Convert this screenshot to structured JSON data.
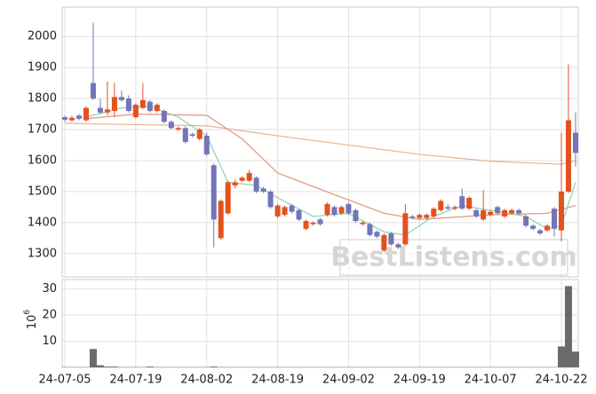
{
  "chart_data": [
    {
      "type": "candlestick",
      "categories": [
        "24-07-05",
        null,
        null,
        null,
        null,
        null,
        null,
        null,
        null,
        null,
        "24-07-19",
        null,
        null,
        null,
        null,
        null,
        null,
        null,
        null,
        null,
        "24-08-02",
        null,
        null,
        null,
        null,
        null,
        null,
        null,
        null,
        null,
        "24-08-19",
        null,
        null,
        null,
        null,
        null,
        null,
        null,
        null,
        null,
        "24-09-02",
        null,
        null,
        null,
        null,
        null,
        null,
        null,
        null,
        null,
        "24-09-19",
        null,
        null,
        null,
        null,
        null,
        null,
        null,
        null,
        null,
        "24-10-07",
        null,
        null,
        null,
        null,
        null,
        null,
        null,
        null,
        null,
        "24-10-22",
        null,
        null
      ],
      "open": [
        1740,
        1730,
        1745,
        1730,
        1850,
        1770,
        1755,
        1760,
        1805,
        1800,
        1740,
        1770,
        1790,
        1760,
        1760,
        1725,
        1700,
        1705,
        1685,
        1670,
        1680,
        1585,
        1350,
        1430,
        1520,
        1535,
        1535,
        1545,
        1510,
        1500,
        1420,
        1425,
        1455,
        1440,
        1380,
        1395,
        1410,
        1425,
        1450,
        1430,
        1460,
        1440,
        1395,
        1395,
        1370,
        1310,
        1365,
        1330,
        1330,
        1420,
        1415,
        1415,
        1420,
        1440,
        1450,
        1445,
        1485,
        1445,
        1440,
        1410,
        1425,
        1450,
        1420,
        1430,
        1440,
        1420,
        1390,
        1375,
        1375,
        1445,
        1375,
        1500,
        1690
      ],
      "high": [
        1745,
        1745,
        1750,
        1775,
        2045,
        1800,
        1855,
        1850,
        1825,
        1810,
        1785,
        1850,
        1795,
        1785,
        1765,
        1730,
        1710,
        1710,
        1690,
        1705,
        1690,
        1590,
        1475,
        1535,
        1540,
        1550,
        1570,
        1550,
        1515,
        1505,
        1460,
        1455,
        1460,
        1445,
        1410,
        1405,
        1415,
        1465,
        1455,
        1455,
        1465,
        1445,
        1405,
        1400,
        1375,
        1365,
        1370,
        1335,
        1460,
        1425,
        1430,
        1430,
        1450,
        1475,
        1460,
        1455,
        1510,
        1485,
        1445,
        1505,
        1440,
        1455,
        1445,
        1445,
        1445,
        1425,
        1395,
        1380,
        1395,
        1450,
        1690,
        1910,
        1755
      ],
      "low": [
        1725,
        1725,
        1730,
        1725,
        1795,
        1750,
        1745,
        1740,
        1790,
        1755,
        1735,
        1765,
        1755,
        1755,
        1720,
        1700,
        1695,
        1655,
        1675,
        1665,
        1615,
        1320,
        1345,
        1425,
        1510,
        1530,
        1530,
        1495,
        1495,
        1445,
        1415,
        1420,
        1430,
        1405,
        1375,
        1390,
        1390,
        1420,
        1420,
        1425,
        1425,
        1400,
        1390,
        1355,
        1350,
        1305,
        1325,
        1315,
        1325,
        1410,
        1410,
        1410,
        1415,
        1435,
        1440,
        1440,
        1440,
        1440,
        1415,
        1405,
        1420,
        1425,
        1415,
        1425,
        1425,
        1385,
        1375,
        1360,
        1370,
        1355,
        1340,
        1495,
        1580
      ],
      "close": [
        1732,
        1738,
        1735,
        1770,
        1800,
        1755,
        1765,
        1805,
        1795,
        1760,
        1780,
        1795,
        1760,
        1780,
        1725,
        1705,
        1705,
        1660,
        1680,
        1700,
        1620,
        1410,
        1470,
        1530,
        1530,
        1545,
        1560,
        1500,
        1500,
        1450,
        1455,
        1450,
        1435,
        1410,
        1405,
        1400,
        1395,
        1460,
        1425,
        1450,
        1430,
        1405,
        1400,
        1360,
        1355,
        1360,
        1330,
        1320,
        1430,
        1415,
        1425,
        1425,
        1445,
        1470,
        1445,
        1450,
        1445,
        1480,
        1420,
        1440,
        1435,
        1430,
        1440,
        1440,
        1430,
        1390,
        1380,
        1365,
        1390,
        1380,
        1500,
        1730,
        1625
      ],
      "up_color": "#e4511e",
      "down_color": "#7275b6",
      "overlays": [
        {
          "color": "#e8b89a",
          "x": [
            0,
            20,
            30,
            40,
            50,
            60,
            70,
            72
          ],
          "values": [
            1720,
            1712,
            1680,
            1650,
            1620,
            1598,
            1588,
            1600
          ]
        },
        {
          "color": "#e59a80",
          "x": [
            3,
            10,
            20,
            25,
            30,
            38,
            45,
            50,
            60,
            68,
            72
          ],
          "values": [
            1735,
            1750,
            1746,
            1670,
            1560,
            1490,
            1430,
            1410,
            1425,
            1430,
            1455
          ]
        },
        {
          "color": "#8fd6b4",
          "x": [
            3,
            8,
            12,
            16,
            20,
            23,
            27,
            30,
            35,
            40,
            45,
            48,
            52,
            56,
            60,
            65,
            68,
            70,
            72
          ],
          "values": [
            1740,
            1770,
            1775,
            1740,
            1680,
            1530,
            1520,
            1480,
            1420,
            1430,
            1370,
            1360,
            1420,
            1455,
            1440,
            1420,
            1380,
            1390,
            1530
          ]
        }
      ],
      "ylim": [
        1225,
        2095
      ],
      "yticks": [
        1300,
        1400,
        1500,
        1600,
        1700,
        1800,
        1900,
        2000
      ],
      "grid": true,
      "watermark": "BestListens.com"
    },
    {
      "type": "bar",
      "color": "#6b6b6b",
      "values": [
        0.1,
        0.1,
        0.1,
        0.1,
        7,
        0.8,
        0.3,
        0.3,
        0.1,
        0.1,
        0.1,
        0.1,
        0.3,
        0.1,
        0.1,
        0.1,
        0.1,
        0.1,
        0.1,
        0.1,
        0.1,
        0.3,
        0.1,
        0.1,
        0.1,
        0.1,
        0.1,
        0.1,
        0.1,
        0.1,
        0.1,
        0.1,
        0.1,
        0.1,
        0.1,
        0.1,
        0.1,
        0.1,
        0.1,
        0.1,
        0.1,
        0.1,
        0.1,
        0.1,
        0.1,
        0.1,
        0.1,
        0.1,
        0.1,
        0.1,
        0.1,
        0.1,
        0.1,
        0.1,
        0.1,
        0.1,
        0.1,
        0.1,
        0.1,
        0.1,
        0.1,
        0.1,
        0.1,
        0.1,
        0.1,
        0.1,
        0.1,
        0.1,
        0.1,
        0.1,
        8,
        31,
        6
      ],
      "ylabel": {
        "base": "10",
        "exponent": "6"
      },
      "ylim": [
        0,
        33.5
      ],
      "yticks": [
        10,
        20,
        30
      ],
      "grid": true
    }
  ]
}
